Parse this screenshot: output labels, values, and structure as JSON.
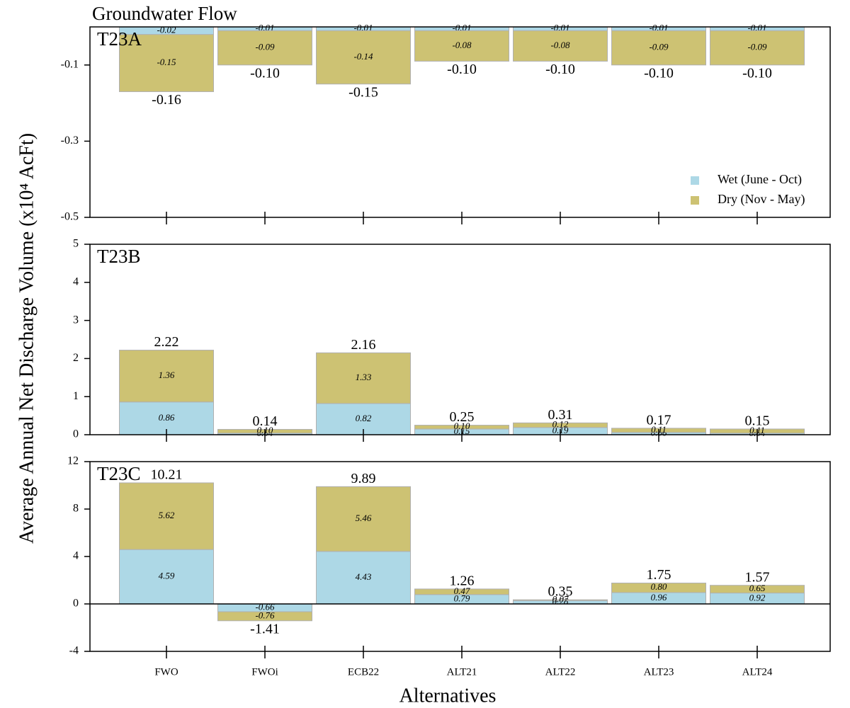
{
  "title": "Groundwater Flow",
  "y_label": "Average Annual Net Discharge Volume (x10⁴ AcFt)",
  "x_label": "Alternatives",
  "chart_data": [
    {
      "type": "bar",
      "stacked": true,
      "title": "T23A",
      "legend": "lower right",
      "series": [
        {
          "name": "Wet (June - Oct)",
          "color": "#add8e6",
          "values": [
            -0.02,
            -0.01,
            -0.01,
            -0.01,
            -0.01,
            -0.01,
            -0.01
          ],
          "value_labels": [
            "-0.02",
            "-0.01",
            "-0.01",
            "-0.01",
            "-0.01",
            "-0.01",
            "-0.01"
          ]
        },
        {
          "name": "Dry (Nov - May)",
          "color": "#cdc273",
          "values": [
            -0.15,
            -0.09,
            -0.14,
            -0.08,
            -0.08,
            -0.09,
            -0.09
          ],
          "value_labels": [
            "-0.15",
            "-0.09",
            "-0.14",
            "-0.08",
            "-0.08",
            "-0.09",
            "-0.09"
          ]
        }
      ],
      "totals": {
        "values": [
          -0.16,
          -0.1,
          -0.15,
          -0.1,
          -0.1,
          -0.1,
          -0.1
        ],
        "value_labels": [
          "-0.16",
          "-0.10",
          "-0.15",
          "-0.10",
          "-0.10",
          "-0.10",
          "-0.10"
        ]
      },
      "ylim": [
        -0.5,
        0
      ],
      "yticks": [
        -0.5,
        -0.3,
        -0.1
      ]
    },
    {
      "type": "bar",
      "stacked": true,
      "title": "T23B",
      "series": [
        {
          "color": "#add8e6",
          "values": [
            0.86,
            0.04,
            0.82,
            0.15,
            0.19,
            0.06,
            0.04
          ],
          "value_labels": [
            "0.86",
            "0.04",
            "0.82",
            "0.15",
            "0.19",
            "0.06",
            "0.04"
          ]
        },
        {
          "color": "#cdc273",
          "values": [
            1.36,
            0.1,
            1.33,
            0.1,
            0.12,
            0.11,
            0.11
          ],
          "value_labels": [
            "1.36",
            "0.10",
            "1.33",
            "0.10",
            "0.12",
            "0.11",
            "0.11"
          ]
        }
      ],
      "totals": {
        "values": [
          2.22,
          0.14,
          2.16,
          0.25,
          0.31,
          0.17,
          0.15
        ],
        "value_labels": [
          "2.22",
          "0.14",
          "2.16",
          "0.25",
          "0.31",
          "0.17",
          "0.15"
        ]
      },
      "ylim": [
        0,
        5
      ],
      "yticks": [
        0,
        1,
        2,
        3,
        4,
        5
      ]
    },
    {
      "type": "bar",
      "stacked": true,
      "title": "T23C",
      "categories": [
        "FWO",
        "FWOi",
        "ECB22",
        "ALT21",
        "ALT22",
        "ALT23",
        "ALT24"
      ],
      "series": [
        {
          "color": "#add8e6",
          "values": [
            4.59,
            -0.66,
            4.43,
            0.79,
            0.28,
            0.96,
            0.92
          ],
          "value_labels": [
            "4.59",
            "-0.66",
            "4.43",
            "0.79",
            "0.28",
            "0.96",
            "0.92"
          ]
        },
        {
          "color": "#cdc273",
          "values": [
            5.62,
            -0.76,
            5.46,
            0.47,
            0.07,
            0.8,
            0.65
          ],
          "value_labels": [
            "5.62",
            "-0.76",
            "5.46",
            "0.47",
            "0.07",
            "0.80",
            "0.65"
          ]
        }
      ],
      "totals": {
        "values": [
          10.21,
          -1.41,
          9.89,
          1.26,
          0.35,
          1.75,
          1.57
        ],
        "value_labels": [
          "10.21",
          "-1.41",
          "9.89",
          "1.26",
          "0.35",
          "1.75",
          "1.57"
        ]
      },
      "ylim": [
        -4,
        12
      ],
      "yticks": [
        -4,
        0,
        4,
        8,
        12
      ]
    }
  ]
}
